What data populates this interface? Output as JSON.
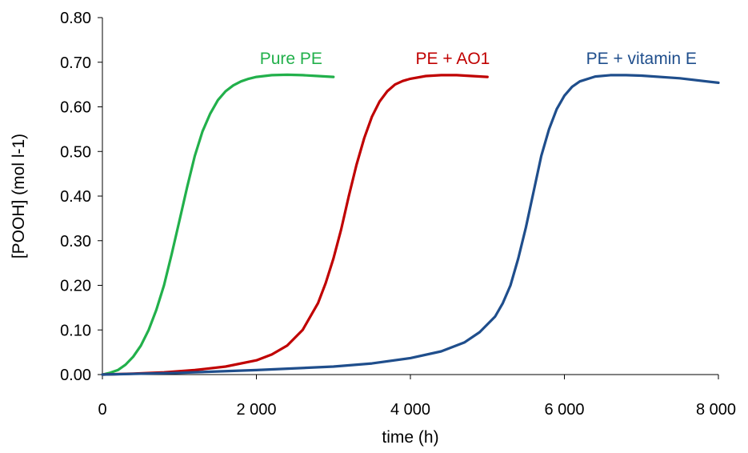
{
  "chart_data": {
    "type": "line",
    "xlabel": "time (h)",
    "ylabel": "[POOH] (mol l-1)",
    "xlim": [
      0,
      8000
    ],
    "ylim": [
      0,
      0.8
    ],
    "x_ticks": [
      0,
      2000,
      4000,
      6000,
      8000
    ],
    "x_tick_labels": [
      "0",
      "2 000",
      "4 000",
      "6 000",
      "8 000"
    ],
    "y_ticks": [
      0,
      0.1,
      0.2,
      0.3,
      0.4,
      0.5,
      0.6,
      0.7,
      0.8
    ],
    "y_tick_labels": [
      "0.00",
      "0.10",
      "0.20",
      "0.30",
      "0.40",
      "0.50",
      "0.60",
      "0.70",
      "0.80"
    ],
    "grid": false,
    "series": [
      {
        "name": "Pure PE",
        "color": "#22b04b",
        "x": [
          0,
          100,
          200,
          300,
          400,
          500,
          600,
          700,
          800,
          900,
          1000,
          1100,
          1200,
          1300,
          1400,
          1500,
          1600,
          1700,
          1800,
          1900,
          2000,
          2200,
          2400,
          2600,
          2800,
          3000
        ],
        "y": [
          0.0,
          0.004,
          0.01,
          0.022,
          0.04,
          0.065,
          0.1,
          0.145,
          0.2,
          0.27,
          0.345,
          0.42,
          0.49,
          0.545,
          0.585,
          0.615,
          0.635,
          0.648,
          0.657,
          0.663,
          0.667,
          0.671,
          0.672,
          0.671,
          0.669,
          0.667
        ]
      },
      {
        "name": "PE + AO1",
        "color": "#c00000",
        "x": [
          0,
          400,
          800,
          1200,
          1600,
          2000,
          2200,
          2400,
          2600,
          2800,
          2900,
          3000,
          3100,
          3200,
          3300,
          3400,
          3500,
          3600,
          3700,
          3800,
          3900,
          4000,
          4200,
          4400,
          4600,
          4800,
          5000
        ],
        "y": [
          0.0,
          0.002,
          0.005,
          0.01,
          0.018,
          0.032,
          0.045,
          0.065,
          0.1,
          0.16,
          0.205,
          0.26,
          0.325,
          0.4,
          0.47,
          0.53,
          0.578,
          0.612,
          0.635,
          0.65,
          0.658,
          0.663,
          0.669,
          0.671,
          0.671,
          0.669,
          0.667
        ]
      },
      {
        "name": "PE + vitamin E",
        "color": "#1f4e8c",
        "x": [
          0,
          1000,
          2000,
          3000,
          3500,
          4000,
          4400,
          4700,
          4900,
          5100,
          5200,
          5300,
          5400,
          5500,
          5600,
          5700,
          5800,
          5900,
          6000,
          6100,
          6200,
          6400,
          6600,
          6800,
          7000,
          7500,
          8000
        ],
        "y": [
          0.0,
          0.004,
          0.01,
          0.018,
          0.025,
          0.037,
          0.052,
          0.072,
          0.095,
          0.13,
          0.16,
          0.2,
          0.26,
          0.33,
          0.41,
          0.49,
          0.55,
          0.595,
          0.625,
          0.645,
          0.657,
          0.668,
          0.671,
          0.671,
          0.67,
          0.664,
          0.654
        ]
      }
    ],
    "series_labels": [
      {
        "text": "Pure PE",
        "x": 2450,
        "y": 0.71,
        "color": "#22b04b"
      },
      {
        "text": "PE + AO1",
        "x": 4550,
        "y": 0.71,
        "color": "#c00000"
      },
      {
        "text": "PE + vitamin E",
        "x": 7000,
        "y": 0.71,
        "color": "#1f4e8c"
      }
    ]
  }
}
